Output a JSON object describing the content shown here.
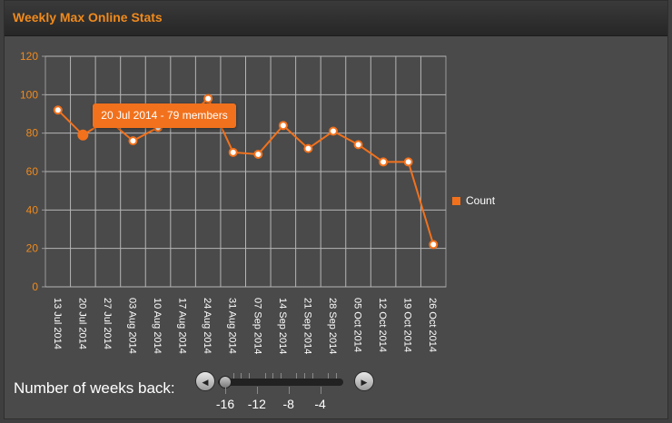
{
  "panel": {
    "title": "Weekly Max Online Stats"
  },
  "chart_data": {
    "type": "line",
    "x": [
      "13 Jul 2014",
      "20 Jul 2014",
      "27 Jul 2014",
      "03 Aug 2014",
      "10 Aug 2014",
      "17 Aug 2014",
      "24 Aug 2014",
      "31 Aug 2014",
      "07 Sep 2014",
      "14 Sep 2014",
      "21 Sep 2014",
      "28 Sep 2014",
      "05 Oct 2014",
      "12 Oct 2014",
      "19 Oct 2014",
      "26 Oct 2014"
    ],
    "series": [
      {
        "name": "Count",
        "color": "#f2711c",
        "values": [
          92,
          79,
          87,
          76,
          83,
          86,
          98,
          70,
          69,
          84,
          72,
          81,
          74,
          65,
          65,
          22
        ]
      }
    ],
    "ylim": [
      0,
      120
    ],
    "yticks": [
      0,
      20,
      40,
      60,
      80,
      100,
      120
    ],
    "grid": true,
    "legend_position": "right"
  },
  "legend": {
    "label": "Count",
    "color": "#f2711c"
  },
  "tooltip": {
    "text": "20 Jul 2014 - 79 members"
  },
  "slider": {
    "label": "Number of weeks back:",
    "value": -16,
    "min": -16,
    "max": -2,
    "tick_labels": [
      "-16",
      "-12",
      "-8",
      "-4"
    ],
    "prev_icon": "triangle-left",
    "next_icon": "triangle-right"
  }
}
